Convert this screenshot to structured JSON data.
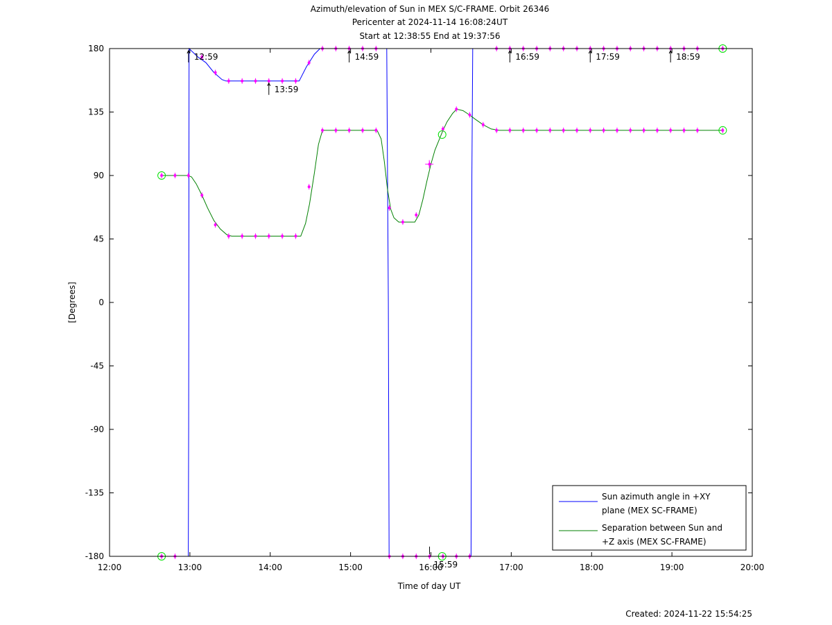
{
  "title_lines": [
    "Azimuth/elevation of Sun in MEX S/C-FRAME.  Orbit 26346",
    "Pericenter at 2024-11-14 16:08:24UT",
    "Start at 12:38:55 End at 19:37:56"
  ],
  "created": "Created: 2024-11-22 15:54:25",
  "chart_data": {
    "type": "line",
    "xlabel": "Time of day UT",
    "ylabel": "[Degrees]",
    "xlim": [
      12.0,
      20.0
    ],
    "ylim": [
      -180,
      180
    ],
    "x_ticks": [
      {
        "value": 12,
        "label": "12:00"
      },
      {
        "value": 13,
        "label": "13:00"
      },
      {
        "value": 14,
        "label": "14:00"
      },
      {
        "value": 15,
        "label": "15:00"
      },
      {
        "value": 16,
        "label": "16:00"
      },
      {
        "value": 17,
        "label": "17:00"
      },
      {
        "value": 18,
        "label": "18:00"
      },
      {
        "value": 19,
        "label": "19:00"
      },
      {
        "value": 20,
        "label": "20:00"
      }
    ],
    "y_ticks": [
      {
        "value": 180,
        "label": "180"
      },
      {
        "value": 135,
        "label": "135"
      },
      {
        "value": 90,
        "label": "90"
      },
      {
        "value": 45,
        "label": "45"
      },
      {
        "value": 0,
        "label": "0"
      },
      {
        "value": -45,
        "label": "-45"
      },
      {
        "value": -90,
        "label": "-90"
      },
      {
        "value": -135,
        "label": "-135"
      },
      {
        "value": -180,
        "label": "-180"
      }
    ],
    "series": [
      {
        "name": "Sun azimuth angle in +XY plane (MEX SC-FRAME)",
        "color": "#0000ff",
        "x": [
          12.648,
          12.98,
          12.985,
          12.99,
          13.1,
          13.2,
          13.3,
          13.4,
          13.45,
          13.6,
          13.8,
          14.0,
          14.2,
          14.36,
          14.45,
          14.55,
          14.62,
          14.8,
          15.0,
          15.2,
          15.45,
          15.47,
          15.48,
          15.6,
          15.8,
          16.0,
          16.2,
          16.5,
          16.51,
          16.52,
          16.7,
          17.0,
          17.5,
          18.0,
          18.5,
          19.0,
          19.632
        ],
        "y": [
          -180,
          -180,
          -90,
          180,
          174,
          170,
          163,
          158,
          157,
          157,
          157,
          157,
          157,
          157,
          167,
          176,
          180,
          180,
          180,
          180,
          180,
          0,
          -180,
          -180,
          -180,
          -180,
          -180,
          -180,
          90,
          180,
          180,
          180,
          180,
          180,
          180,
          180,
          180
        ]
      },
      {
        "name": "Separation between Sun and +Z axis (MEX SC-FRAME)",
        "color": "#008000",
        "x": [
          12.648,
          12.97,
          13.02,
          13.08,
          13.15,
          13.22,
          13.3,
          13.38,
          13.46,
          13.52,
          13.6,
          13.8,
          14.0,
          14.2,
          14.38,
          14.44,
          14.49,
          14.55,
          14.6,
          14.65,
          14.75,
          15.0,
          15.2,
          15.33,
          15.38,
          15.42,
          15.46,
          15.5,
          15.54,
          15.6,
          15.8,
          15.85,
          15.9,
          15.95,
          16.0,
          16.05,
          16.1,
          16.15,
          16.2,
          16.27,
          16.32,
          16.4,
          16.48,
          16.55,
          16.65,
          16.75,
          16.85,
          17.0,
          17.5,
          18.0,
          18.5,
          19.0,
          19.632
        ],
        "y": [
          90,
          90,
          89,
          84,
          76,
          67,
          58,
          52,
          48,
          47,
          47,
          47,
          47,
          47,
          47,
          56,
          70,
          92,
          112,
          122,
          122,
          122,
          122,
          122,
          116,
          100,
          80,
          66,
          60,
          57,
          57,
          62,
          73,
          86,
          98,
          108,
          115,
          122,
          128,
          134,
          137,
          136,
          133,
          130,
          126,
          123,
          122,
          122,
          122,
          122,
          122,
          122,
          122
        ]
      }
    ],
    "markers": {
      "color": "#ff00ff",
      "azimuth_x": [
        12.648,
        12.815,
        13.15,
        13.317,
        13.483,
        13.65,
        13.817,
        13.983,
        14.15,
        14.317,
        14.483,
        14.65,
        14.817,
        14.983,
        15.15,
        15.317,
        15.483,
        15.65,
        15.817,
        15.983,
        16.15,
        16.317,
        16.483,
        16.817,
        16.983,
        17.15,
        17.317,
        17.483,
        17.65,
        17.817,
        17.983,
        18.15,
        18.317,
        18.483,
        18.65,
        18.817,
        18.983,
        19.15,
        19.317,
        19.632
      ],
      "azimuth_y": [
        -180,
        -180,
        174,
        163,
        157,
        157,
        157,
        157,
        157,
        157,
        170,
        180,
        180,
        180,
        180,
        180,
        -180,
        -180,
        -180,
        -180,
        -180,
        -180,
        -180,
        180,
        180,
        180,
        180,
        180,
        180,
        180,
        180,
        180,
        180,
        180,
        180,
        180,
        180,
        180,
        180,
        180
      ],
      "separation_x": [
        12.648,
        12.815,
        12.983,
        13.15,
        13.317,
        13.483,
        13.65,
        13.817,
        13.983,
        14.15,
        14.317,
        14.483,
        14.65,
        14.817,
        14.983,
        15.15,
        15.317,
        15.483,
        15.65,
        15.817,
        15.983,
        16.15,
        16.317,
        16.483,
        16.65,
        16.817,
        16.983,
        17.15,
        17.317,
        17.483,
        17.65,
        17.817,
        17.983,
        18.15,
        18.317,
        18.483,
        18.65,
        18.817,
        18.983,
        19.15,
        19.317,
        19.632
      ],
      "separation_y": [
        90,
        90,
        90,
        76,
        55,
        47,
        47,
        47,
        47,
        47,
        47,
        82,
        122,
        122,
        122,
        122,
        122,
        67,
        57,
        62,
        98,
        123,
        137,
        133,
        126,
        122,
        122,
        122,
        122,
        122,
        122,
        122,
        122,
        122,
        122,
        122,
        122,
        122,
        122,
        122,
        122,
        122
      ],
      "start_end_circles": [
        {
          "x": 12.648,
          "y": 90
        },
        {
          "x": 12.648,
          "y": -180
        },
        {
          "x": 19.632,
          "y": 180
        },
        {
          "x": 19.632,
          "y": 122
        }
      ],
      "pericenter_circles": [
        {
          "x": 16.14,
          "y": 119
        },
        {
          "x": 16.14,
          "y": -180
        }
      ],
      "pericenter_plus": {
        "x": 15.98,
        "y": 98
      }
    },
    "hour_annotations": [
      {
        "x": 12.983,
        "y": 180,
        "label": "12:59",
        "dir": "down"
      },
      {
        "x": 13.983,
        "y": 157,
        "label": "13:59",
        "dir": "down"
      },
      {
        "x": 14.983,
        "y": 180,
        "label": "14:59",
        "dir": "down"
      },
      {
        "x": 15.983,
        "y": -180,
        "label": "15:59",
        "dir": "up"
      },
      {
        "x": 16.983,
        "y": 180,
        "label": "16:59",
        "dir": "down"
      },
      {
        "x": 17.983,
        "y": 180,
        "label": "17:59",
        "dir": "down"
      },
      {
        "x": 18.983,
        "y": 180,
        "label": "18:59",
        "dir": "down"
      }
    ],
    "legend": {
      "placement": "bottom-right",
      "entries": [
        {
          "color": "#0000ff",
          "lines": [
            "Sun azimuth angle in +XY",
            "plane (MEX SC-FRAME)"
          ]
        },
        {
          "color": "#008000",
          "lines": [
            "Separation between Sun and",
            "+Z axis (MEX SC-FRAME)"
          ]
        }
      ]
    }
  }
}
